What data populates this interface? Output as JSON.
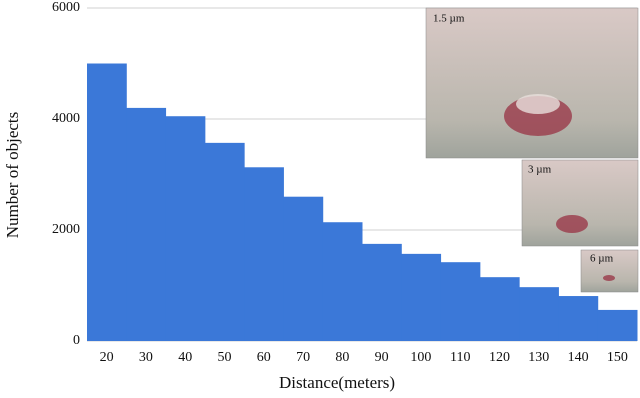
{
  "chart_data": {
    "type": "bar",
    "x_label": "Distance(meters)",
    "y_label": "Number of objects",
    "categories": [
      "20",
      "30",
      "40",
      "50",
      "60",
      "70",
      "80",
      "90",
      "100",
      "110",
      "120",
      "130",
      "140",
      "150"
    ],
    "values": [
      5000,
      4200,
      4050,
      3570,
      3130,
      2600,
      2140,
      1750,
      1570,
      1420,
      1150,
      970,
      810,
      560
    ],
    "color": "#3b78d8",
    "ylim": [
      0,
      6000
    ],
    "yticks": [
      0,
      2000,
      4000,
      6000
    ],
    "grid": true,
    "annotations": [
      "1.5 µm",
      "3 µm",
      "6 µm"
    ]
  }
}
